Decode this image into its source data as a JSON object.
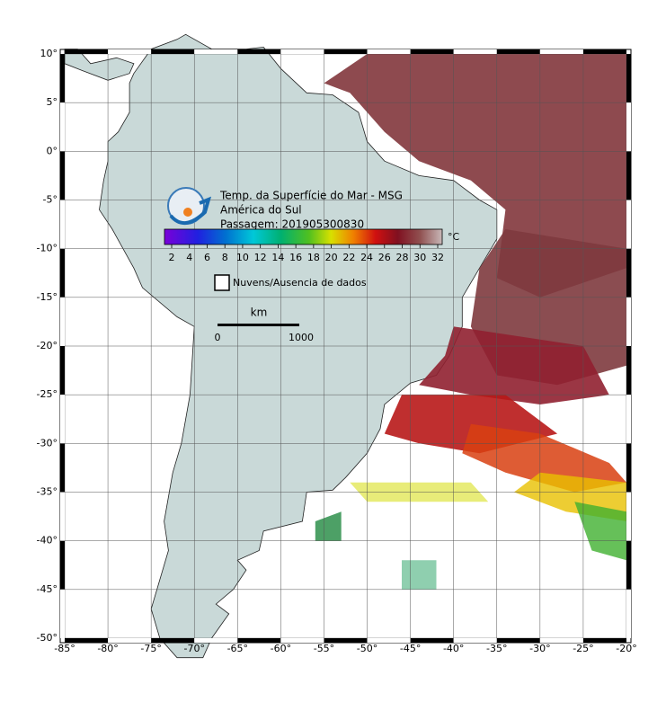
{
  "map": {
    "lon_labels": [
      "-85°",
      "-80°",
      "-75°",
      "-70°",
      "-65°",
      "-60°",
      "-55°",
      "-50°",
      "-45°",
      "-40°",
      "-35°",
      "-30°",
      "-25°",
      "-20°"
    ],
    "lat_labels": [
      "10°",
      "5°",
      "0°",
      "-5°",
      "-10°",
      "-15°",
      "-20°",
      "-25°",
      "-30°",
      "-35°",
      "-40°",
      "-45°",
      "-50°"
    ],
    "legend": {
      "title_lines": [
        "Temp. da Superfície do Mar - MSG",
        "América do Sul",
        "Passagem: 201905300830"
      ],
      "colorbar_ticks": [
        2,
        4,
        6,
        8,
        10,
        12,
        14,
        16,
        18,
        20,
        22,
        24,
        26,
        28,
        30,
        32
      ],
      "unit": "°C",
      "no_data": "Nuvens/Ausencia de dados",
      "scale_unit": "km",
      "scale_labels": [
        "0",
        "1000"
      ]
    }
  }
}
